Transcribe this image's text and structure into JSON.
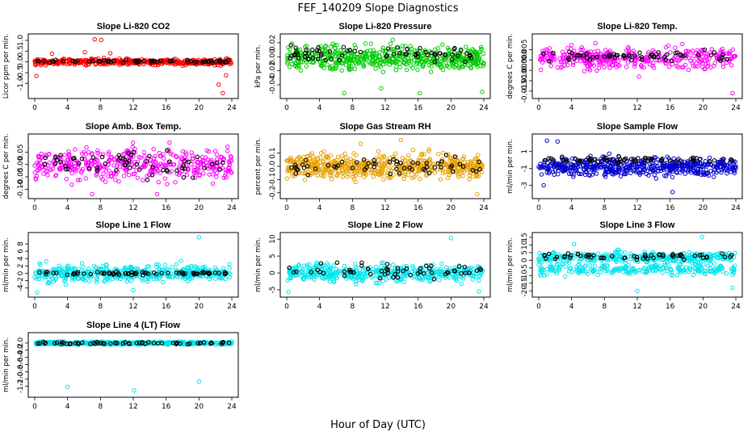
{
  "figure": {
    "title": "FEF_140209  Slope Diagnostics",
    "xlabel": "Hour of Day (UTC)"
  },
  "chart_data": [
    {
      "type": "scatter",
      "title": "Slope Li-820 CO2",
      "ylabel": "Licor ppm per min.",
      "xlim": [
        0,
        24
      ],
      "ylim": [
        -1.55,
        1.15
      ],
      "xticks": [
        0,
        4,
        8,
        12,
        16,
        20,
        24
      ],
      "yticks": [
        -1.0,
        -0.5,
        0.0,
        0.5,
        1.0
      ],
      "ytick_labels": [
        "-1.0",
        "-0.5",
        "0.0",
        "0.5",
        "1.0"
      ],
      "cloud": {
        "color": "#ff0000",
        "center": 0.0,
        "spread": 0.1,
        "n": 420,
        "outliers": [
          [
            7.3,
            1.05
          ],
          [
            8.1,
            1.02
          ],
          [
            2.1,
            0.38
          ],
          [
            6.1,
            0.45
          ],
          [
            9.2,
            0.4
          ],
          [
            0.2,
            -0.65
          ],
          [
            22.4,
            -1.05
          ],
          [
            22.9,
            -1.45
          ],
          [
            23.3,
            -0.62
          ]
        ]
      },
      "black": {
        "center": 0.02,
        "spread": 0.05,
        "n": 60
      }
    },
    {
      "type": "scatter",
      "title": "Slope Li-820 Pressure",
      "ylabel": "kPa per min.",
      "xlim": [
        0,
        24
      ],
      "ylim": [
        -0.055,
        0.028
      ],
      "xticks": [
        0,
        4,
        8,
        12,
        16,
        20,
        24
      ],
      "yticks": [
        -0.04,
        -0.02,
        0.0,
        0.02
      ],
      "ytick_labels": [
        "-0.04",
        "-0.02",
        "0.00",
        "0.02"
      ],
      "cloud": {
        "color": "#00cc00",
        "center": -0.002,
        "spread": 0.012,
        "n": 520,
        "outliers": [
          [
            7.0,
            -0.052
          ],
          [
            16.2,
            -0.052
          ],
          [
            23.8,
            -0.05
          ],
          [
            12.9,
            0.024
          ],
          [
            11.5,
            -0.045
          ]
        ]
      },
      "black": {
        "center": 0.004,
        "spread": 0.008,
        "n": 70
      }
    },
    {
      "type": "scatter",
      "title": "Slope Li-820 Temp.",
      "ylabel": "degrees C per min.",
      "xlim": [
        0,
        24
      ],
      "ylim": [
        -0.017,
        0.011
      ],
      "xticks": [
        0,
        4,
        8,
        12,
        16,
        20,
        24
      ],
      "yticks": [
        -0.015,
        -0.01,
        -0.005,
        0.0,
        0.005
      ],
      "ytick_labels": [
        "-0.015",
        "-0.010",
        "-0.005",
        "0.000",
        "0.005"
      ],
      "cloud": {
        "color": "#ff00ff",
        "center": 0.001,
        "spread": 0.0035,
        "n": 380,
        "outliers": [
          [
            12.2,
            -0.008
          ],
          [
            23.6,
            -0.016
          ]
        ]
      },
      "black": {
        "center": 0.0015,
        "spread": 0.002,
        "n": 60
      }
    },
    {
      "type": "scatter",
      "title": "Slope Amb. Box Temp.",
      "ylabel": "degrees C per min.",
      "xlim": [
        0,
        24
      ],
      "ylim": [
        -0.125,
        0.11
      ],
      "xticks": [
        0,
        4,
        8,
        12,
        16,
        20,
        24
      ],
      "yticks": [
        -0.1,
        -0.05,
        0.0,
        0.05
      ],
      "ytick_labels": [
        "-0.10",
        "-0.05",
        "0.00",
        "0.05"
      ],
      "cloud": {
        "color": "#ff00ff",
        "center": 0.0,
        "spread": 0.045,
        "n": 420,
        "outliers": [
          [
            7.0,
            -0.12
          ],
          [
            14.9,
            -0.12
          ]
        ]
      },
      "black": {
        "center": 0.0,
        "spread": 0.04,
        "n": 60
      }
    },
    {
      "type": "scatter",
      "title": "Slope Gas Stream RH",
      "ylabel": "percent per min.",
      "xlim": [
        0,
        24
      ],
      "ylim": [
        -0.22,
        0.22
      ],
      "xticks": [
        0,
        4,
        8,
        12,
        16,
        20,
        24
      ],
      "yticks": [
        -0.2,
        -0.1,
        0.0,
        0.1
      ],
      "ytick_labels": [
        "-0.2",
        "-0.1",
        "0.0",
        "0.1"
      ],
      "cloud": {
        "color": "#e69f00",
        "center": 0.0,
        "spread": 0.065,
        "n": 560,
        "outliers": [
          [
            13.9,
            0.2
          ],
          [
            23.2,
            -0.21
          ],
          [
            9.0,
            0.17
          ]
        ]
      },
      "black": {
        "center": 0.0,
        "spread": 0.045,
        "n": 60
      }
    },
    {
      "type": "scatter",
      "title": "Slope Sample Flow",
      "ylabel": "ml/min per min.",
      "xlim": [
        0,
        24
      ],
      "ylim": [
        -4.2,
        2.7
      ],
      "xticks": [
        0,
        4,
        8,
        12,
        16,
        20,
        24
      ],
      "yticks": [
        -3,
        -1,
        1
      ],
      "ytick_labels": [
        "-3",
        "-1",
        "1"
      ],
      "cloud": {
        "color": "#0000cc",
        "center": -0.8,
        "spread": 0.75,
        "n": 520,
        "outliers": [
          [
            1.0,
            2.3
          ],
          [
            2.3,
            2.2
          ],
          [
            0.6,
            -3.0
          ],
          [
            16.3,
            -3.8
          ]
        ]
      },
      "black": {
        "center": 0.05,
        "spread": 0.25,
        "n": 60
      }
    },
    {
      "type": "scatter",
      "title": "Slope Line 1 Flow",
      "ylabel": "ml/min per min.",
      "xlim": [
        0,
        24
      ],
      "ylim": [
        -5.6,
        10.2
      ],
      "xticks": [
        0,
        4,
        8,
        12,
        16,
        20,
        24
      ],
      "yticks": [
        -4,
        -2,
        0,
        2,
        4,
        6,
        8
      ],
      "ytick_labels": [
        "-4",
        "-2",
        "0",
        "2",
        "4",
        "6",
        "8"
      ],
      "cloud": {
        "color": "#00e5ee",
        "center": 0.0,
        "spread": 1.6,
        "n": 440,
        "outliers": [
          [
            20.0,
            9.8
          ],
          [
            0.3,
            -5.2
          ],
          [
            12.0,
            -4.6
          ]
        ]
      },
      "black": {
        "center": 0.0,
        "spread": 0.3,
        "n": 70
      }
    },
    {
      "type": "scatter",
      "title": "Slope Line 2 Flow",
      "ylabel": "ml/min per min.",
      "xlim": [
        0,
        24
      ],
      "ylim": [
        -6.2,
        11.0
      ],
      "xticks": [
        0,
        4,
        8,
        12,
        16,
        20,
        24
      ],
      "yticks": [
        -5,
        0,
        5,
        10
      ],
      "ytick_labels": [
        "-5",
        "0",
        "5",
        "10"
      ],
      "cloud": {
        "color": "#00e5ee",
        "center": 0.0,
        "spread": 1.9,
        "n": 440,
        "outliers": [
          [
            20.0,
            10.3
          ],
          [
            0.2,
            -5.6
          ],
          [
            23.4,
            -5.5
          ]
        ]
      },
      "black": {
        "center": 0.5,
        "spread": 1.5,
        "n": 60
      }
    },
    {
      "type": "scatter",
      "title": "Slope Line 3 Flow",
      "ylabel": "ml/min per min.",
      "xlim": [
        0,
        24
      ],
      "ylim": [
        -22,
        16
      ],
      "xticks": [
        0,
        4,
        8,
        12,
        16,
        20,
        24
      ],
      "yticks": [
        -20,
        -15,
        -10,
        -5,
        0,
        5,
        10,
        15
      ],
      "ytick_labels": [
        "-20",
        "-15",
        "-10",
        "-5",
        "0",
        "5",
        "10",
        "15"
      ],
      "cloud": {
        "color": "#00e5ee",
        "center": 2.0,
        "spread": 2.5,
        "n": 320,
        "outliers": [
          [
            4.3,
            10.5
          ],
          [
            19.9,
            15.2
          ],
          [
            12.0,
            -20.0
          ],
          [
            23.6,
            -18.0
          ]
        ]
      },
      "cloud2": {
        "color": "#00e5ee",
        "center": -6.0,
        "spread": 2.6,
        "n": 240
      },
      "black": {
        "center": 2.5,
        "spread": 1.4,
        "n": 60
      }
    },
    {
      "type": "scatter",
      "title": "Slope Line 4 (LT) Flow",
      "ylabel": "ml/min per min.",
      "xlim": [
        0,
        24
      ],
      "ylim": [
        -1.42,
        0.2
      ],
      "xticks": [
        0,
        4,
        8,
        12,
        16,
        20,
        24
      ],
      "yticks": [
        -1.2,
        -1.0,
        -0.8,
        -0.6,
        -0.4,
        -0.2,
        0.0
      ],
      "ytick_labels": [
        "-1.2",
        "-1.0",
        "-0.8",
        "-0.6",
        "-0.4",
        "-0.2",
        "0.0"
      ],
      "cloud": {
        "color": "#00e5ee",
        "center": 0.0,
        "spread": 0.03,
        "n": 440,
        "outliers": [
          [
            4.0,
            -1.22
          ],
          [
            12.1,
            -1.32
          ],
          [
            20.0,
            -1.07
          ]
        ]
      },
      "black": {
        "center": 0.0,
        "spread": 0.025,
        "n": 60
      }
    }
  ]
}
